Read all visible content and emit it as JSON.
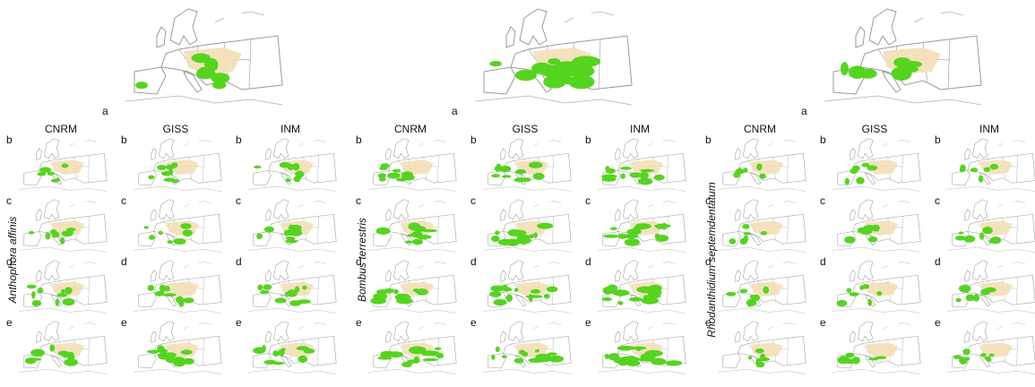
{
  "panels": [
    {
      "species": "Anthophora affinis",
      "current_label": "a",
      "models": [
        "CNRM",
        "GISS",
        "INM"
      ],
      "rows": [
        "b",
        "c",
        "d",
        "e"
      ]
    },
    {
      "species": "Bombus terrestris",
      "current_label": "a",
      "models": [
        "CNRM",
        "GISS",
        "INM"
      ],
      "rows": [
        "b",
        "c",
        "d",
        "e"
      ]
    },
    {
      "species": "Rhodanthidium septemdentatum",
      "current_label": "a",
      "models": [
        "CNRM",
        "GISS",
        "INM"
      ],
      "rows": [
        "b",
        "c",
        "d",
        "e"
      ]
    }
  ]
}
